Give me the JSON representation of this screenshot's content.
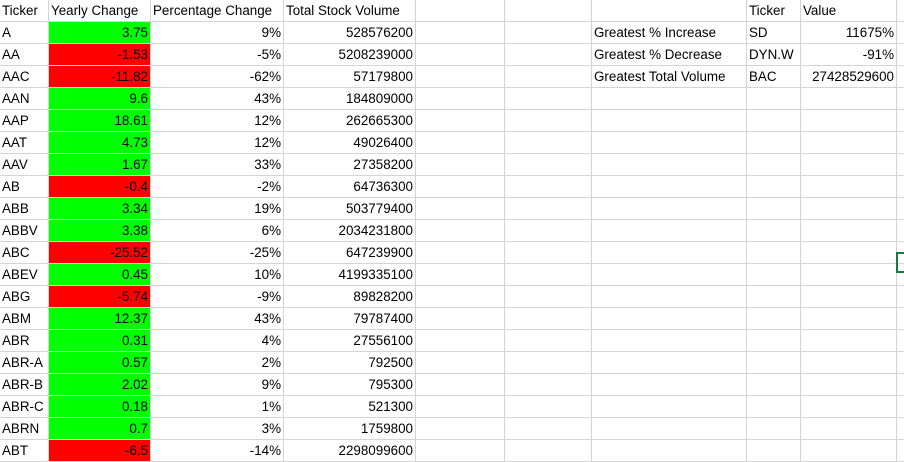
{
  "sheet": {
    "headers": [
      "Ticker",
      "Yearly Change",
      "Percentage Change",
      "Total Stock Volume"
    ],
    "rows": [
      {
        "ticker": "A",
        "change": "3.75",
        "pct": "9%",
        "volume": "528576200",
        "color": "#00ff00"
      },
      {
        "ticker": "AA",
        "change": "-1.53",
        "pct": "-5%",
        "volume": "5208239000",
        "color": "#ff0000"
      },
      {
        "ticker": "AAC",
        "change": "-11.82",
        "pct": "-62%",
        "volume": "57179800",
        "color": "#ff0000"
      },
      {
        "ticker": "AAN",
        "change": "9.6",
        "pct": "43%",
        "volume": "184809000",
        "color": "#00ff00"
      },
      {
        "ticker": "AAP",
        "change": "18.61",
        "pct": "12%",
        "volume": "262665300",
        "color": "#00ff00"
      },
      {
        "ticker": "AAT",
        "change": "4.73",
        "pct": "12%",
        "volume": "49026400",
        "color": "#00ff00"
      },
      {
        "ticker": "AAV",
        "change": "1.67",
        "pct": "33%",
        "volume": "27358200",
        "color": "#00ff00"
      },
      {
        "ticker": "AB",
        "change": "-0.4",
        "pct": "-2%",
        "volume": "64736300",
        "color": "#ff0000"
      },
      {
        "ticker": "ABB",
        "change": "3.34",
        "pct": "19%",
        "volume": "503779400",
        "color": "#00ff00"
      },
      {
        "ticker": "ABBV",
        "change": "3.38",
        "pct": "6%",
        "volume": "2034231800",
        "color": "#00ff00"
      },
      {
        "ticker": "ABC",
        "change": "-25.52",
        "pct": "-25%",
        "volume": "647239900",
        "color": "#ff0000"
      },
      {
        "ticker": "ABEV",
        "change": "0.45",
        "pct": "10%",
        "volume": "4199335100",
        "color": "#00ff00"
      },
      {
        "ticker": "ABG",
        "change": "-5.74",
        "pct": "-9%",
        "volume": "89828200",
        "color": "#ff0000"
      },
      {
        "ticker": "ABM",
        "change": "12.37",
        "pct": "43%",
        "volume": "79787400",
        "color": "#00ff00"
      },
      {
        "ticker": "ABR",
        "change": "0.31",
        "pct": "4%",
        "volume": "27556100",
        "color": "#00ff00"
      },
      {
        "ticker": "ABR-A",
        "change": "0.57",
        "pct": "2%",
        "volume": "792500",
        "color": "#00ff00"
      },
      {
        "ticker": "ABR-B",
        "change": "2.02",
        "pct": "9%",
        "volume": "795300",
        "color": "#00ff00"
      },
      {
        "ticker": "ABR-C",
        "change": "0.18",
        "pct": "1%",
        "volume": "521300",
        "color": "#00ff00"
      },
      {
        "ticker": "ABRN",
        "change": "0.7",
        "pct": "3%",
        "volume": "1759800",
        "color": "#00ff00"
      },
      {
        "ticker": "ABT",
        "change": "-6.5",
        "pct": "-14%",
        "volume": "2298099600",
        "color": "#ff0000"
      }
    ],
    "summary": {
      "headers": [
        "Ticker",
        "Value"
      ],
      "rows": [
        {
          "label": "Greatest % Increase",
          "ticker": "SD",
          "value": "11675%"
        },
        {
          "label": "Greatest % Decrease",
          "ticker": "DYN.W",
          "value": "-91%"
        },
        {
          "label": "Greatest Total Volume",
          "ticker": "BAC",
          "value": "27428529600"
        }
      ]
    },
    "colors": {
      "positive": "#00ff00",
      "negative": "#ff0000",
      "gridline": "#d4d4d4",
      "selection": "#107c41"
    }
  }
}
